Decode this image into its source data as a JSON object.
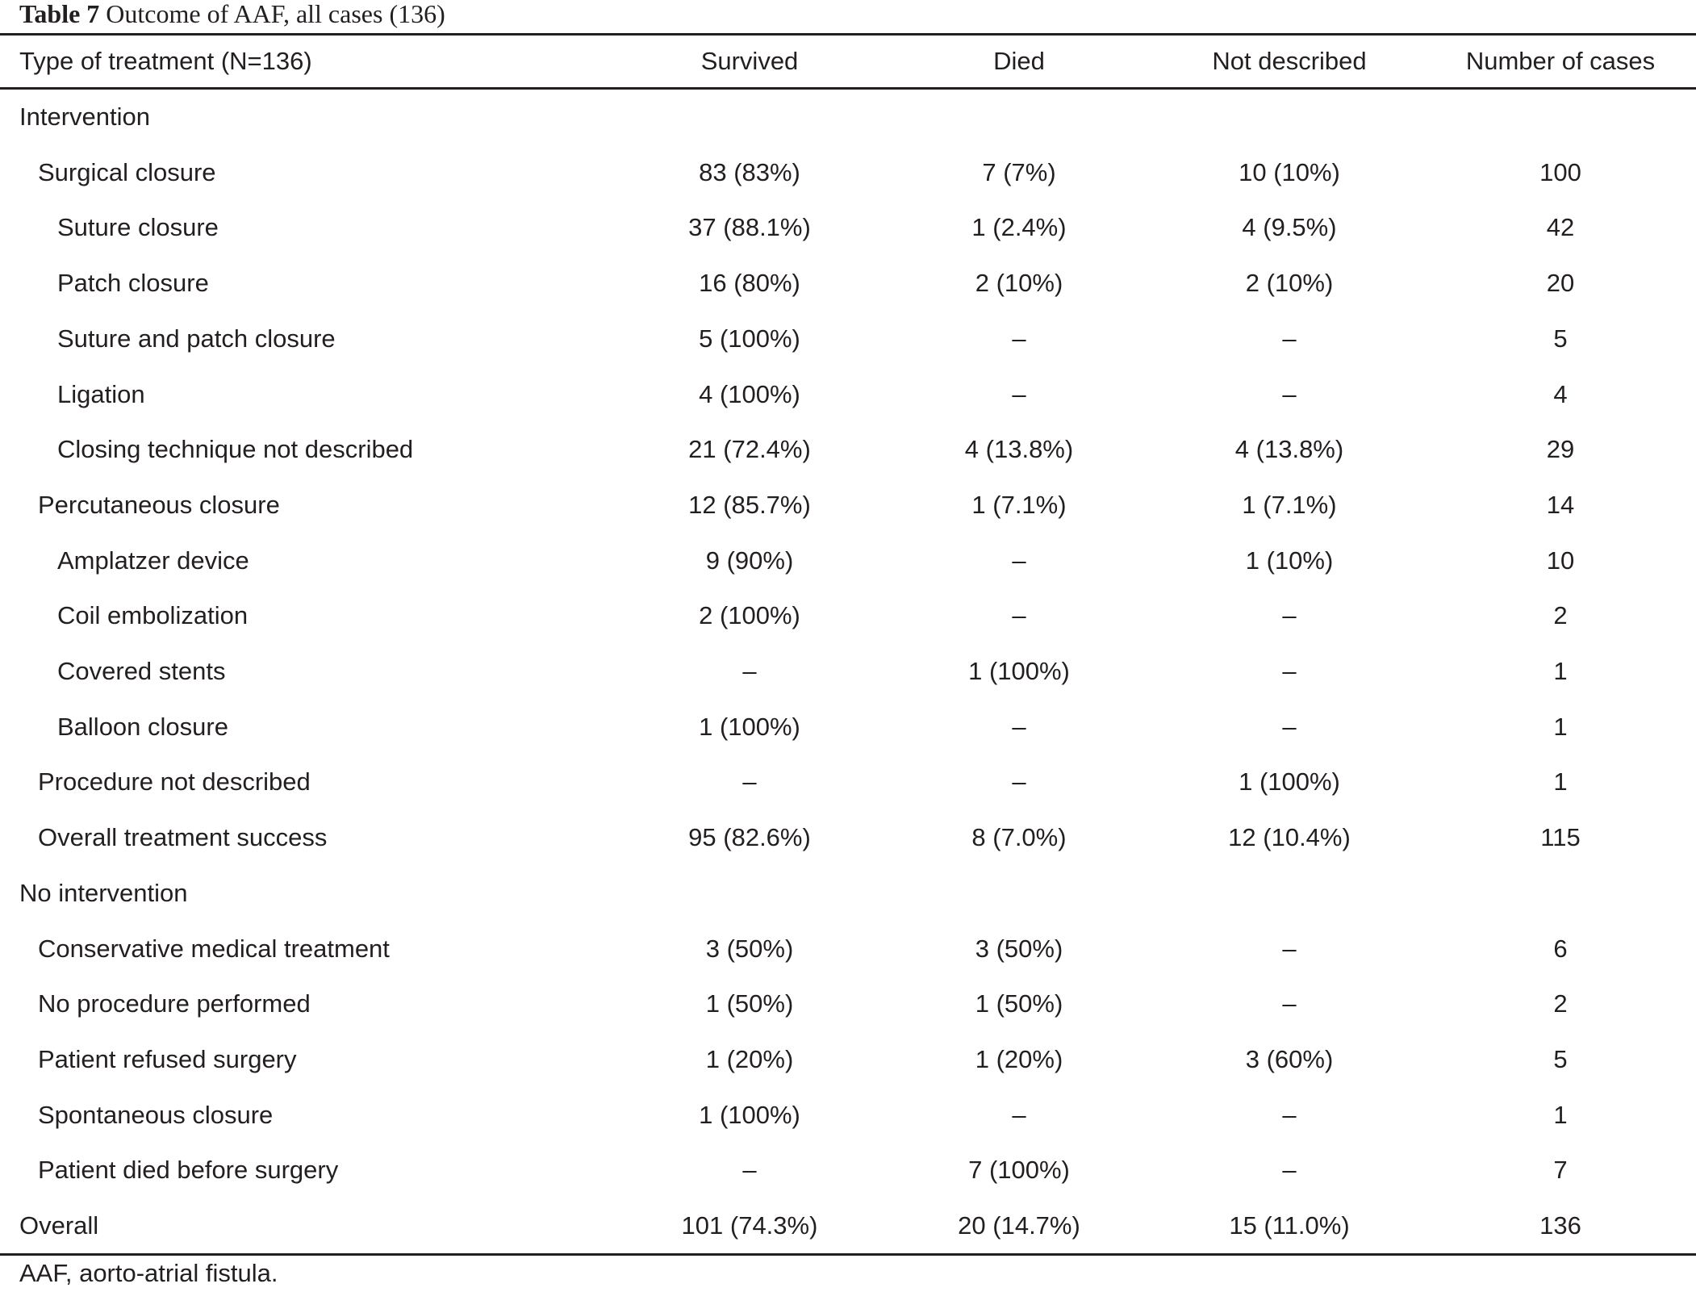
{
  "caption": {
    "label": "Table 7",
    "text": "Outcome of AAF, all cases (136)"
  },
  "header": [
    "Type of treatment (N=136)",
    "Survived",
    "Died",
    "Not described",
    "Number of cases"
  ],
  "rows": [
    {
      "label": "Intervention",
      "indent": 0,
      "cells": [
        "",
        "",
        "",
        ""
      ]
    },
    {
      "label": "Surgical closure",
      "indent": 1,
      "cells": [
        "83 (83%)",
        "7 (7%)",
        "10 (10%)",
        "100"
      ]
    },
    {
      "label": "Suture closure",
      "indent": 2,
      "cells": [
        "37 (88.1%)",
        "1 (2.4%)",
        "4 (9.5%)",
        "42"
      ]
    },
    {
      "label": "Patch closure",
      "indent": 2,
      "cells": [
        "16 (80%)",
        "2 (10%)",
        "2 (10%)",
        "20"
      ]
    },
    {
      "label": "Suture and patch closure",
      "indent": 2,
      "cells": [
        "5 (100%)",
        "–",
        "–",
        "5"
      ]
    },
    {
      "label": "Ligation",
      "indent": 2,
      "cells": [
        "4 (100%)",
        "–",
        "–",
        "4"
      ]
    },
    {
      "label": "Closing technique not described",
      "indent": 2,
      "cells": [
        "21 (72.4%)",
        "4 (13.8%)",
        "4 (13.8%)",
        "29"
      ]
    },
    {
      "label": "Percutaneous closure",
      "indent": 1,
      "cells": [
        "12 (85.7%)",
        "1 (7.1%)",
        "1 (7.1%)",
        "14"
      ]
    },
    {
      "label": "Amplatzer device",
      "indent": 2,
      "cells": [
        "9 (90%)",
        "–",
        "1 (10%)",
        "10"
      ]
    },
    {
      "label": "Coil embolization",
      "indent": 2,
      "cells": [
        "2 (100%)",
        "–",
        "–",
        "2"
      ]
    },
    {
      "label": "Covered stents",
      "indent": 2,
      "cells": [
        "–",
        "1 (100%)",
        "–",
        "1"
      ]
    },
    {
      "label": "Balloon closure",
      "indent": 2,
      "cells": [
        "1 (100%)",
        "–",
        "–",
        "1"
      ]
    },
    {
      "label": "Procedure not described",
      "indent": 1,
      "cells": [
        "–",
        "–",
        "1 (100%)",
        "1"
      ]
    },
    {
      "label": "Overall treatment success",
      "indent": 1,
      "cells": [
        "95 (82.6%)",
        "8 (7.0%)",
        "12 (10.4%)",
        "115"
      ]
    },
    {
      "label": "No intervention",
      "indent": 0,
      "cells": [
        "",
        "",
        "",
        ""
      ]
    },
    {
      "label": "Conservative medical treatment",
      "indent": 1,
      "cells": [
        "3 (50%)",
        "3 (50%)",
        "–",
        "6"
      ]
    },
    {
      "label": "No procedure performed",
      "indent": 1,
      "cells": [
        "1 (50%)",
        "1 (50%)",
        "–",
        "2"
      ]
    },
    {
      "label": "Patient refused surgery",
      "indent": 1,
      "cells": [
        "1 (20%)",
        "1 (20%)",
        "3 (60%)",
        "5"
      ]
    },
    {
      "label": "Spontaneous closure",
      "indent": 1,
      "cells": [
        "1 (100%)",
        "–",
        "–",
        "1"
      ]
    },
    {
      "label": "Patient died before surgery",
      "indent": 1,
      "cells": [
        "–",
        "7 (100%)",
        "–",
        "7"
      ]
    },
    {
      "label": "Overall",
      "indent": 0,
      "cells": [
        "101 (74.3%)",
        "20 (14.7%)",
        "15 (11.0%)",
        "136"
      ]
    }
  ],
  "footnote": "AAF, aorto-atrial fistula."
}
